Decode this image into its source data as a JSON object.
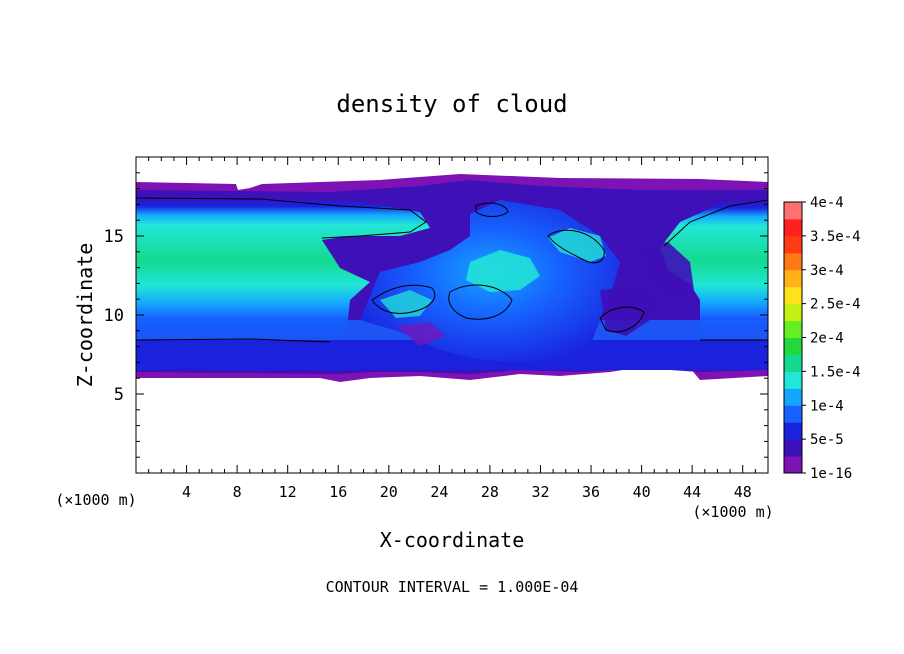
{
  "chart_data": {
    "type": "heatmap",
    "title": "density of cloud",
    "xlabel": "X-coordinate",
    "ylabel": "Z-coordinate",
    "x_unit": "(×1000 m)",
    "y_unit": "(×1000 m)",
    "xlim": [
      0,
      50
    ],
    "ylim": [
      0,
      20
    ],
    "x_ticks": [
      "4",
      "8",
      "12",
      "16",
      "20",
      "24",
      "28",
      "32",
      "36",
      "40",
      "44",
      "48"
    ],
    "y_ticks": [
      "5",
      "10",
      "15"
    ],
    "footer": "CONTOUR INTERVAL = 1.000E-04",
    "colorbar": {
      "labels": [
        "1e-16",
        "5e-5",
        "1e-4",
        "1.5e-4",
        "2e-4",
        "2.5e-4",
        "3e-4",
        "3.5e-4",
        "4e-4"
      ],
      "values": [
        1e-16,
        5e-05,
        0.0001,
        0.00015,
        0.0002,
        0.00025,
        0.0003,
        0.00035,
        0.0004
      ],
      "colors": [
        "#7d12b5",
        "#3e10b8",
        "#1a22de",
        "#1762ff",
        "#14a6ff",
        "#22e6d6",
        "#14d990",
        "#22d83a",
        "#66ee22",
        "#c4f014",
        "#ffe21a",
        "#ffb21a",
        "#ff7a14",
        "#ff3c14",
        "#ff2020",
        "#ff7070"
      ]
    },
    "field_description_colors": {
      "edge": "#7d12b5",
      "outer": "#3e10b8",
      "low": "#1a22de",
      "midlow": "#1762ff",
      "mid": "#14a6ff",
      "high": "#22e6d6",
      "peak": "#14d990"
    },
    "contour_levels": [
      0.0001
    ]
  }
}
